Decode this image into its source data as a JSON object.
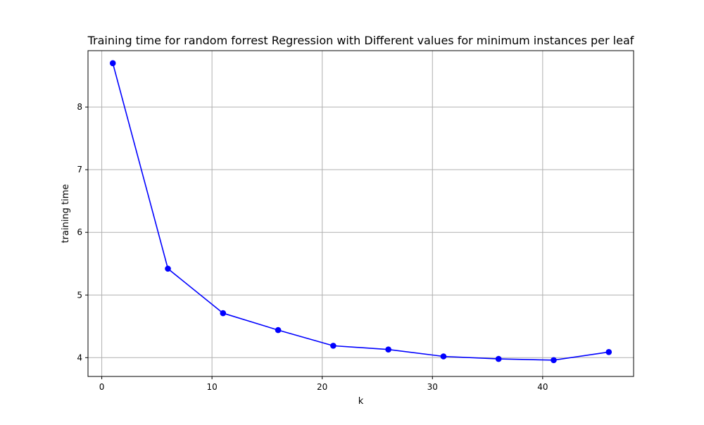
{
  "chart_data": {
    "type": "line",
    "title": "Training time for random forrest Regression with Different values for minimum instances per leaf",
    "xlabel": "k",
    "ylabel": "training time",
    "xlim": [
      -1.25,
      48.25
    ],
    "ylim": [
      3.7,
      8.9
    ],
    "xticks": [
      0,
      10,
      20,
      30,
      40
    ],
    "yticks": [
      4,
      5,
      6,
      7,
      8
    ],
    "grid": true,
    "legend": "none",
    "line_color": "#0000ff",
    "marker": "circle",
    "series": [
      {
        "x": [
          1,
          6,
          11,
          16,
          21,
          26,
          31,
          36,
          41,
          46
        ],
        "y": [
          8.7,
          5.42,
          4.71,
          4.44,
          4.19,
          4.13,
          4.02,
          3.98,
          3.96,
          4.09
        ]
      }
    ]
  }
}
